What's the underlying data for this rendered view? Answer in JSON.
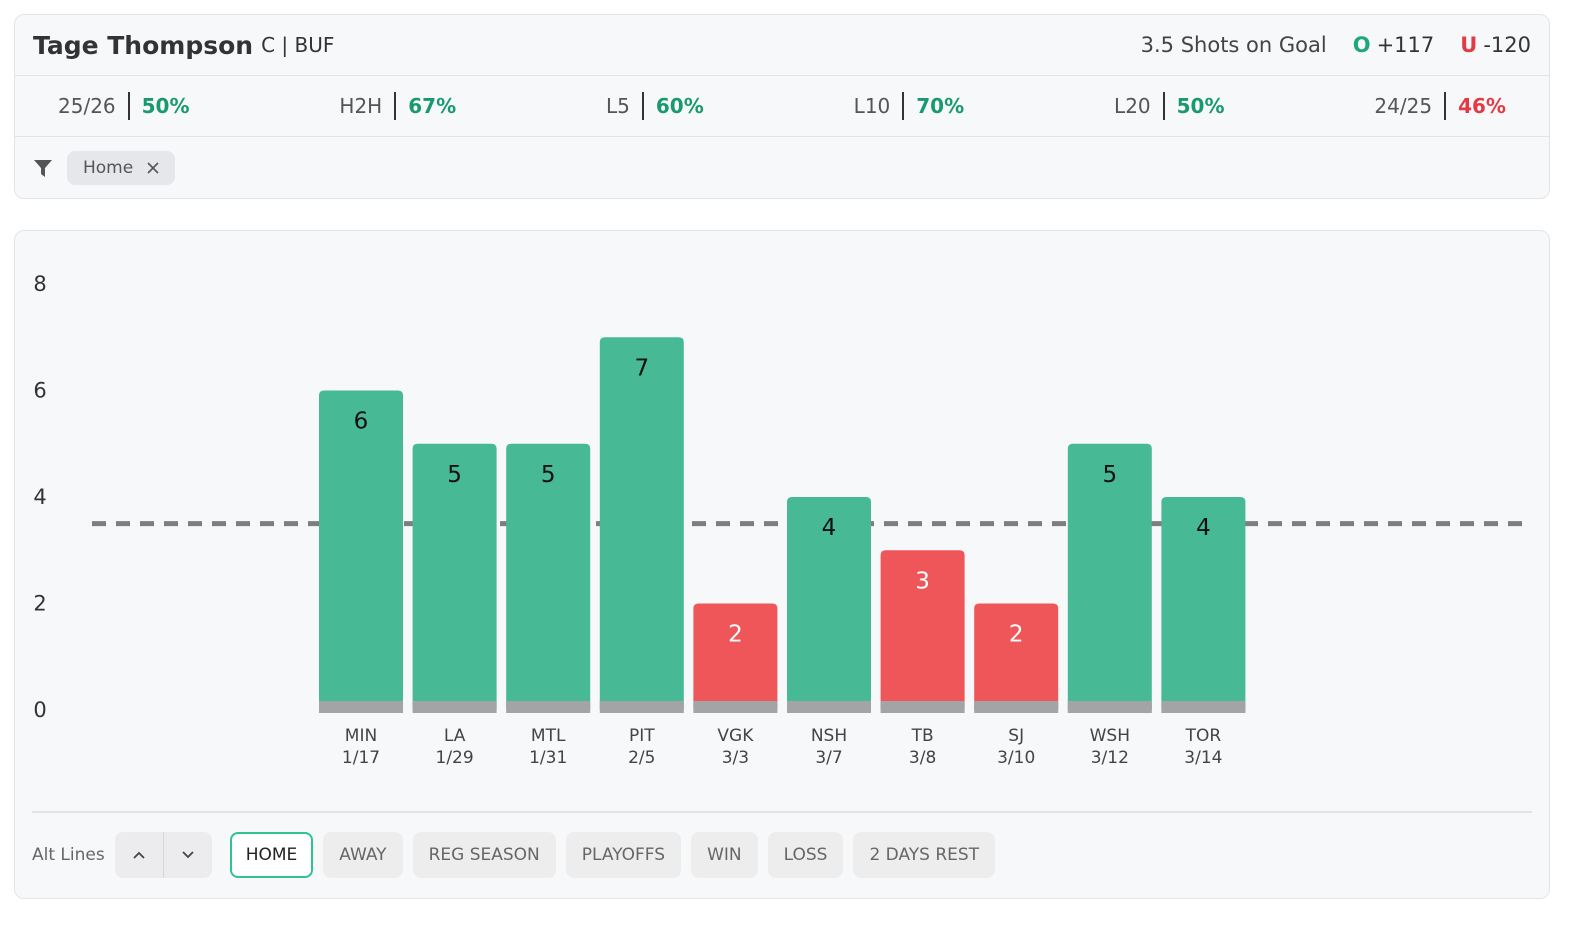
{
  "header": {
    "player": "Tage Thompson",
    "position": "C | BUF",
    "line": "3.5 Shots on Goal",
    "over": {
      "label": "O",
      "odds": "+117",
      "color": "#1fa877"
    },
    "under": {
      "label": "U",
      "odds": "-120",
      "color": "#e23b44"
    }
  },
  "stats": [
    {
      "label": "25/26",
      "value": "50%",
      "color": "#1a9a6c"
    },
    {
      "label": "H2H",
      "value": "67%",
      "color": "#1a9a6c"
    },
    {
      "label": "L5",
      "value": "60%",
      "color": "#1a9a6c"
    },
    {
      "label": "L10",
      "value": "70%",
      "color": "#1a9a6c"
    },
    {
      "label": "L20",
      "value": "50%",
      "color": "#1a9a6c"
    },
    {
      "label": "24/25",
      "value": "46%",
      "color": "#e23b44"
    }
  ],
  "filter": {
    "tag": "Home"
  },
  "chart_data": {
    "type": "bar",
    "categories": [
      "MIN",
      "LA",
      "MTL",
      "PIT",
      "VGK",
      "NSH",
      "TB",
      "SJ",
      "WSH",
      "TOR"
    ],
    "dates": [
      "1/17",
      "1/29",
      "1/31",
      "2/5",
      "3/3",
      "3/7",
      "3/8",
      "3/10",
      "3/12",
      "3/14"
    ],
    "values": [
      6,
      5,
      5,
      7,
      2,
      4,
      3,
      2,
      5,
      4
    ],
    "threshold": 3.5,
    "ylim": [
      0,
      8
    ],
    "yticks": [
      0,
      2,
      4,
      6,
      8
    ],
    "over_color": "#47b994",
    "under_color": "#ef5659"
  },
  "controls": {
    "alt_lines": "Alt Lines",
    "buttons": [
      "HOME",
      "AWAY",
      "REG SEASON",
      "PLAYOFFS",
      "WIN",
      "LOSS",
      "2 DAYS REST"
    ],
    "active": 0
  }
}
